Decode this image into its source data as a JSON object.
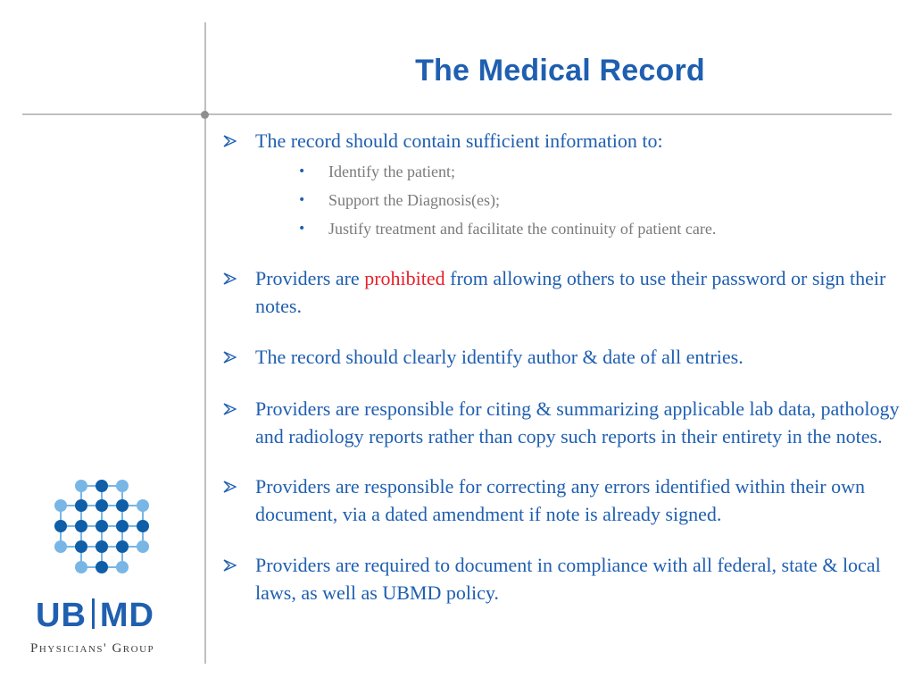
{
  "title": "The Medical Record",
  "bullets": {
    "b1": {
      "text": "The record should contain sufficient information to:",
      "sub": [
        "Identify the patient;",
        "Support the Diagnosis(es);",
        "Justify treatment and facilitate the continuity of patient care."
      ]
    },
    "b2": {
      "pre": "Providers are ",
      "highlight": "prohibited",
      "post": " from allowing others to use their password or sign their notes."
    },
    "b3": "The record should clearly identify author & date of all entries.",
    "b4": "Providers are responsible for citing & summarizing applicable lab data, pathology and radiology reports rather than copy such reports in their entirety in the notes.",
    "b5": "Providers are responsible for correcting any errors identified within their own document, via a dated amendment if note is already signed.",
    "b6": "Providers are required to document in compliance with all federal, state & local laws, as well as UBMD policy."
  },
  "logo": {
    "left": "UB",
    "right": "MD",
    "subtitle": "Physicians' Group"
  },
  "colors": {
    "accent": "#1f5fb0",
    "highlight": "#e8202a",
    "subtext": "#7a7a7a",
    "rule": "#bfbfbf",
    "grid_dark": "#0e5ea8",
    "grid_light": "#78b6e6"
  },
  "icons": {
    "bullet": "arrowhead-bullet-icon",
    "sub_bullet": "dot-bullet-icon",
    "logo": "molecule-grid-logo"
  }
}
